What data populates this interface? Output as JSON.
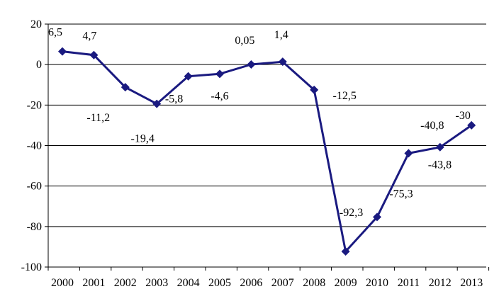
{
  "chart_data": {
    "type": "line",
    "categories": [
      "2000",
      "2001",
      "2002",
      "2003",
      "2004",
      "2005",
      "2006",
      "2007",
      "2008",
      "2009",
      "2010",
      "2011",
      "2012",
      "2013"
    ],
    "series": [
      {
        "values": [
          6.5,
          4.7,
          -11.2,
          -19.4,
          -5.8,
          -4.6,
          0.05,
          1.4,
          -12.5,
          -92.3,
          -75.3,
          -43.8,
          -40.8,
          -30
        ],
        "color": "#1a1a80"
      }
    ],
    "data_labels": [
      "6,5",
      "4,7",
      "-11,2",
      "-19,4",
      "-5,8",
      "-4,6",
      "0,05",
      "1,4",
      "-12,5",
      "-92,3",
      "-75,3",
      "-43,8",
      "-40,8",
      "-30"
    ],
    "ylim": [
      -100,
      20
    ],
    "y_ticks": [
      20,
      0,
      -20,
      -40,
      -60,
      -80,
      -100
    ],
    "grid": true,
    "marker": "diamond"
  }
}
